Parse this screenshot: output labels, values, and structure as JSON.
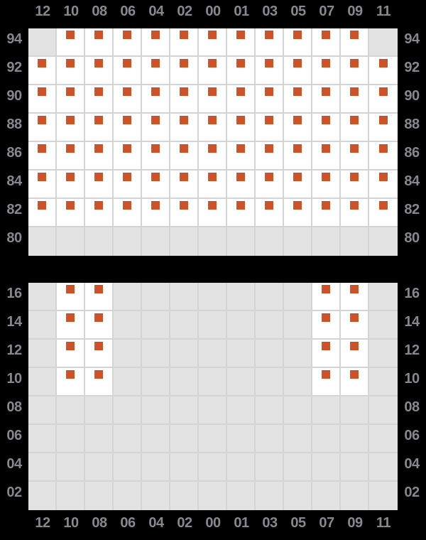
{
  "colors": {
    "background": "#000000",
    "cell_filled": "#ffffff",
    "cell_empty": "#e3e3e4",
    "grid_line": "#d5d5d8",
    "marker": "#cc5329",
    "label": "#87878f"
  },
  "chart_data": {
    "type": "heatmap",
    "columns": [
      "12",
      "10",
      "08",
      "06",
      "04",
      "02",
      "00",
      "01",
      "03",
      "05",
      "07",
      "09",
      "11"
    ],
    "column_labels_shown": [
      "top",
      "bottom"
    ],
    "row_labels_shown": [
      "left",
      "right"
    ],
    "value_meaning": {
      "1": "marker-present",
      "0": "empty-gray-cell"
    },
    "grid": "on",
    "panels": [
      {
        "id": "top",
        "row_labels": [
          "94",
          "92",
          "90",
          "88",
          "86",
          "84",
          "82",
          "80"
        ],
        "matrix": [
          [
            0,
            1,
            1,
            1,
            1,
            1,
            1,
            1,
            1,
            1,
            1,
            1,
            0
          ],
          [
            1,
            1,
            1,
            1,
            1,
            1,
            1,
            1,
            1,
            1,
            1,
            1,
            1
          ],
          [
            1,
            1,
            1,
            1,
            1,
            1,
            1,
            1,
            1,
            1,
            1,
            1,
            1
          ],
          [
            1,
            1,
            1,
            1,
            1,
            1,
            1,
            1,
            1,
            1,
            1,
            1,
            1
          ],
          [
            1,
            1,
            1,
            1,
            1,
            1,
            1,
            1,
            1,
            1,
            1,
            1,
            1
          ],
          [
            1,
            1,
            1,
            1,
            1,
            1,
            1,
            1,
            1,
            1,
            1,
            1,
            1
          ],
          [
            1,
            1,
            1,
            1,
            1,
            1,
            1,
            1,
            1,
            1,
            1,
            1,
            1
          ],
          [
            0,
            0,
            0,
            0,
            0,
            0,
            0,
            0,
            0,
            0,
            0,
            0,
            0
          ]
        ]
      },
      {
        "id": "bottom",
        "row_labels": [
          "16",
          "14",
          "12",
          "10",
          "08",
          "06",
          "04",
          "02"
        ],
        "matrix": [
          [
            0,
            1,
            1,
            0,
            0,
            0,
            0,
            0,
            0,
            0,
            1,
            1,
            0
          ],
          [
            0,
            1,
            1,
            0,
            0,
            0,
            0,
            0,
            0,
            0,
            1,
            1,
            0
          ],
          [
            0,
            1,
            1,
            0,
            0,
            0,
            0,
            0,
            0,
            0,
            1,
            1,
            0
          ],
          [
            0,
            1,
            1,
            0,
            0,
            0,
            0,
            0,
            0,
            0,
            1,
            1,
            0
          ],
          [
            0,
            0,
            0,
            0,
            0,
            0,
            0,
            0,
            0,
            0,
            0,
            0,
            0
          ],
          [
            0,
            0,
            0,
            0,
            0,
            0,
            0,
            0,
            0,
            0,
            0,
            0,
            0
          ],
          [
            0,
            0,
            0,
            0,
            0,
            0,
            0,
            0,
            0,
            0,
            0,
            0,
            0
          ],
          [
            0,
            0,
            0,
            0,
            0,
            0,
            0,
            0,
            0,
            0,
            0,
            0,
            0
          ]
        ]
      }
    ]
  }
}
